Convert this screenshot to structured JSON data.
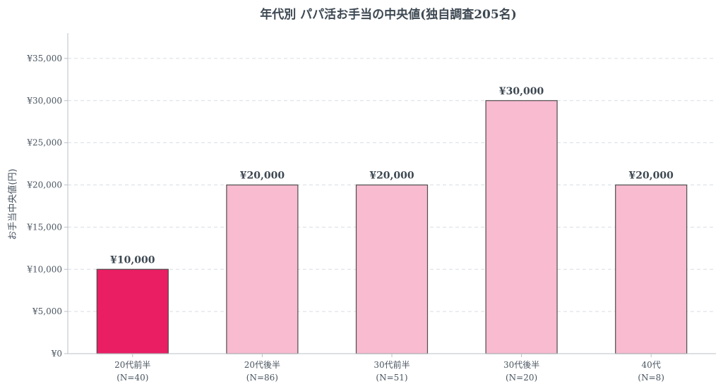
{
  "chart_data": {
    "type": "bar",
    "title": "年代別 パパ活お手当の中央値(独自調査205名)",
    "xlabel": "",
    "ylabel": "お手当中央値(円)",
    "categories": [
      "20代前半",
      "20代後半",
      "30代前半",
      "30代後半",
      "40代"
    ],
    "sample_sizes": [
      "(N=40)",
      "(N=86)",
      "(N=51)",
      "(N=20)",
      "(N=8)"
    ],
    "values": [
      10000,
      20000,
      20000,
      30000,
      20000
    ],
    "data_labels": [
      "¥10,000",
      "¥20,000",
      "¥20,000",
      "¥30,000",
      "¥20,000"
    ],
    "ylim": [
      0,
      38000
    ],
    "yticks": [
      0,
      5000,
      10000,
      15000,
      20000,
      25000,
      30000,
      35000
    ],
    "ytick_labels": [
      "¥0",
      "¥5,000",
      "¥10,000",
      "¥15,000",
      "¥20,000",
      "¥25,000",
      "¥30,000",
      "¥35,000"
    ],
    "grid": true,
    "legend": "none",
    "colors": {
      "highlight": "#e91e63",
      "default": "#f8bbd0",
      "edge": "#4d4d4d"
    },
    "highlight_index": 0
  }
}
